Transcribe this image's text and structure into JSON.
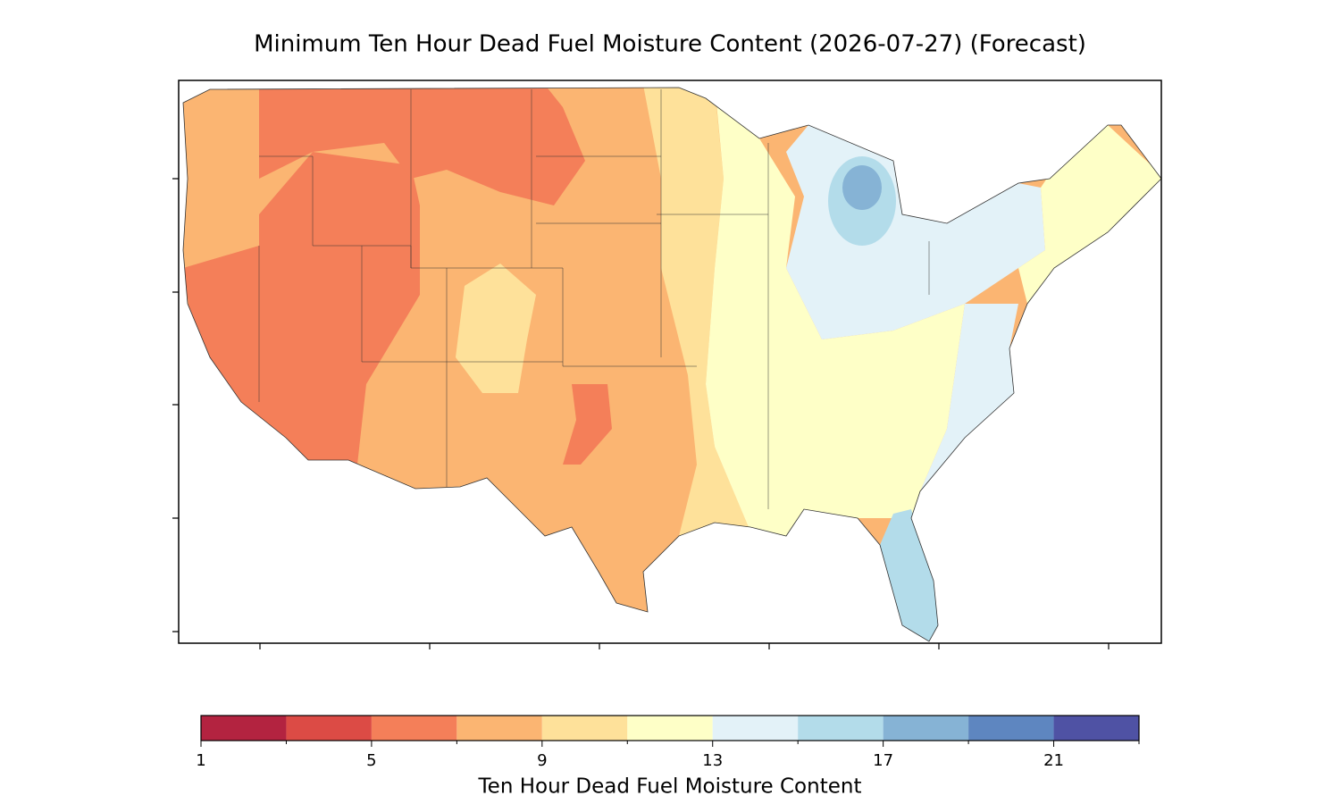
{
  "title": "Minimum Ten Hour Dead Fuel Moisture Content (2026-07-27) (Forecast)",
  "colorbar": {
    "label": "Ten Hour Dead Fuel Moisture Content",
    "levels": [
      1,
      3,
      5,
      7,
      9,
      11,
      13,
      15,
      17,
      19,
      21,
      23
    ],
    "colors": [
      "#b32340",
      "#dc4b45",
      "#f47f59",
      "#fbb572",
      "#fee19a",
      "#feffc7",
      "#e3f2f8",
      "#b3dcea",
      "#86b3d5",
      "#5e86c0",
      "#4f52a4"
    ],
    "ticks": [
      1,
      5,
      9,
      13,
      17,
      21
    ]
  }
}
